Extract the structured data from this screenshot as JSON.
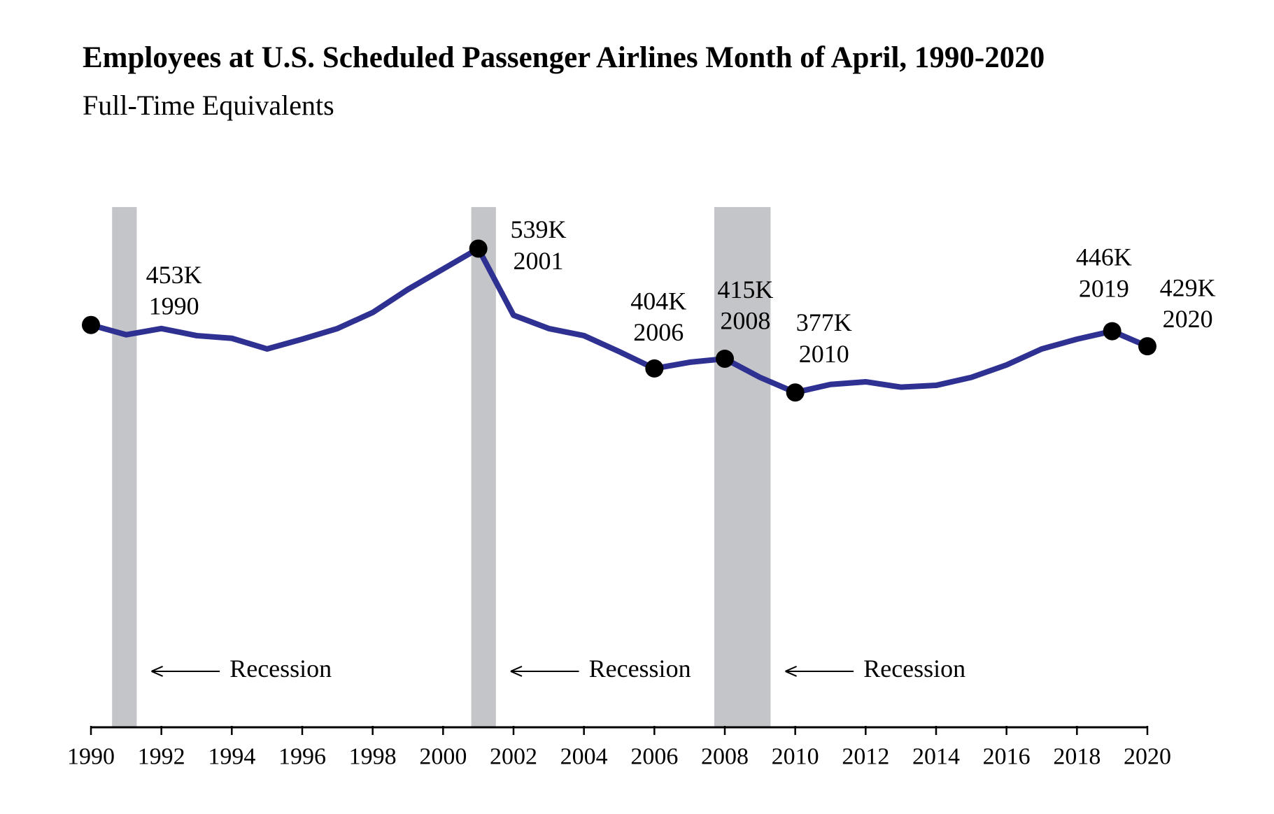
{
  "chart_data": {
    "type": "line",
    "title": "Employees at U.S. Scheduled Passenger Airlines Month of April, 1990-2020",
    "subtitle": "Full-Time Equivalents",
    "x": [
      1990,
      1991,
      1992,
      1993,
      1994,
      1995,
      1996,
      1997,
      1998,
      1999,
      2000,
      2001,
      2002,
      2003,
      2004,
      2005,
      2006,
      2007,
      2008,
      2009,
      2010,
      2011,
      2012,
      2013,
      2014,
      2015,
      2016,
      2017,
      2018,
      2019,
      2020
    ],
    "values": [
      453,
      442,
      449,
      441,
      438,
      426,
      437,
      449,
      467,
      493,
      516,
      539,
      464,
      449,
      441,
      423,
      404,
      411,
      415,
      394,
      377,
      386,
      389,
      383,
      385,
      394,
      408,
      426,
      437,
      446,
      429
    ],
    "value_labels": [
      "453K",
      null,
      null,
      null,
      null,
      null,
      null,
      null,
      null,
      null,
      null,
      "539K",
      null,
      null,
      null,
      null,
      "404K",
      null,
      "415K",
      null,
      "377K",
      null,
      null,
      null,
      null,
      null,
      null,
      null,
      null,
      "446K",
      "429K"
    ],
    "color": "#2e3192",
    "marker_color": "#000000",
    "xlim": [
      1990,
      2020
    ],
    "xticks": [
      1990,
      1992,
      1994,
      1996,
      1998,
      2000,
      2002,
      2004,
      2006,
      2008,
      2010,
      2012,
      2014,
      2016,
      2018,
      2020
    ],
    "ylim": [
      0,
      600
    ],
    "recessions": [
      {
        "start": 1990.6,
        "end": 1991.3,
        "label": "Recession"
      },
      {
        "start": 2000.8,
        "end": 2001.5,
        "label": "Recession"
      },
      {
        "start": 2007.7,
        "end": 2009.3,
        "label": "Recession"
      }
    ],
    "recession_color": "#c4c5c8"
  }
}
